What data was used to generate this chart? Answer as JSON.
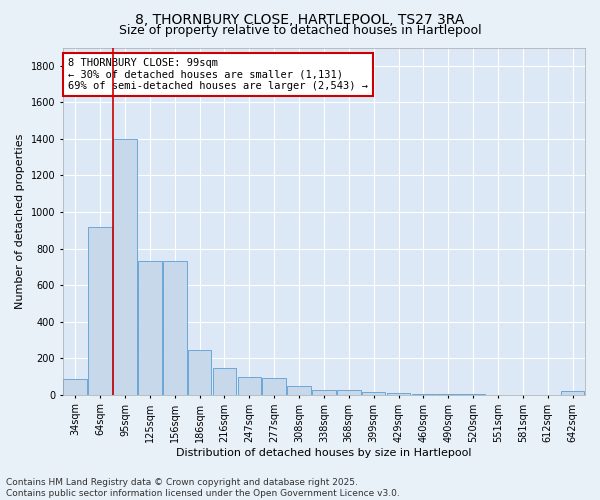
{
  "title1": "8, THORNBURY CLOSE, HARTLEPOOL, TS27 3RA",
  "title2": "Size of property relative to detached houses in Hartlepool",
  "xlabel": "Distribution of detached houses by size in Hartlepool",
  "ylabel": "Number of detached properties",
  "bar_color": "#c8d8eb",
  "bar_edge_color": "#5a9fd4",
  "background_color": "#dce8f5",
  "grid_color": "#ffffff",
  "vline_color": "#cc0000",
  "annotation_box_color": "#cc0000",
  "fig_background": "#e8f0f8",
  "categories": [
    "34sqm",
    "64sqm",
    "95sqm",
    "125sqm",
    "156sqm",
    "186sqm",
    "216sqm",
    "247sqm",
    "277sqm",
    "308sqm",
    "338sqm",
    "368sqm",
    "399sqm",
    "429sqm",
    "460sqm",
    "490sqm",
    "520sqm",
    "551sqm",
    "581sqm",
    "612sqm",
    "642sqm"
  ],
  "values": [
    85,
    920,
    1400,
    730,
    730,
    245,
    145,
    95,
    90,
    50,
    25,
    25,
    15,
    10,
    5,
    5,
    5,
    0,
    0,
    0,
    20
  ],
  "vline_position": 2,
  "annotation_line1": "8 THORNBURY CLOSE: 99sqm",
  "annotation_line2": "← 30% of detached houses are smaller (1,131)",
  "annotation_line3": "69% of semi-detached houses are larger (2,543) →",
  "ylim": [
    0,
    1900
  ],
  "yticks": [
    0,
    200,
    400,
    600,
    800,
    1000,
    1200,
    1400,
    1600,
    1800
  ],
  "footer": "Contains HM Land Registry data © Crown copyright and database right 2025.\nContains public sector information licensed under the Open Government Licence v3.0.",
  "title_fontsize": 10,
  "subtitle_fontsize": 9,
  "axis_label_fontsize": 8,
  "tick_fontsize": 7,
  "annotation_fontsize": 7.5,
  "footer_fontsize": 6.5
}
